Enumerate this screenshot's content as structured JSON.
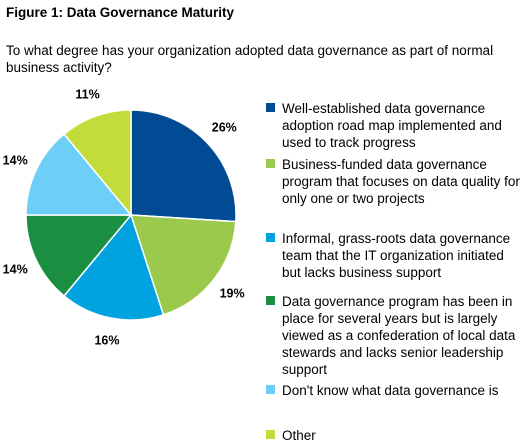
{
  "figure_title": "Figure 1: Data Governance Maturity",
  "question": "To what degree has your organization adopted data governance as part of normal business activity?",
  "chart_data": {
    "type": "pie",
    "title": "Figure 1: Data Governance Maturity",
    "subtitle": "To what degree has your organization adopted data governance as part of normal business activity?",
    "legend_position": "right",
    "slices": [
      {
        "label": "Well-established data governance adoption road map implemented and used to track progress",
        "value": 26,
        "value_label": "26%",
        "color": "#004B93"
      },
      {
        "label": "Business-funded data governance program that focuses on data quality for only one or two projects",
        "value": 19,
        "value_label": "19%",
        "color": "#9BC94C"
      },
      {
        "label": "Informal, grass-roots data governance team that the IT organization initiated but lacks business support",
        "value": 16,
        "value_label": "16%",
        "color": "#00A3E0"
      },
      {
        "label": "Data governance program has been in place for several years but is largely viewed as a confederation of local data stewards and lacks senior leadership support",
        "value": 14,
        "value_label": "14%",
        "color": "#1A8F41"
      },
      {
        "label": "Don't know what data governance is",
        "value": 14,
        "value_label": "14%",
        "color": "#6DCFF6"
      },
      {
        "label": "Other",
        "value": 11,
        "value_label": "11%",
        "color": "#C4DC3A"
      }
    ]
  }
}
